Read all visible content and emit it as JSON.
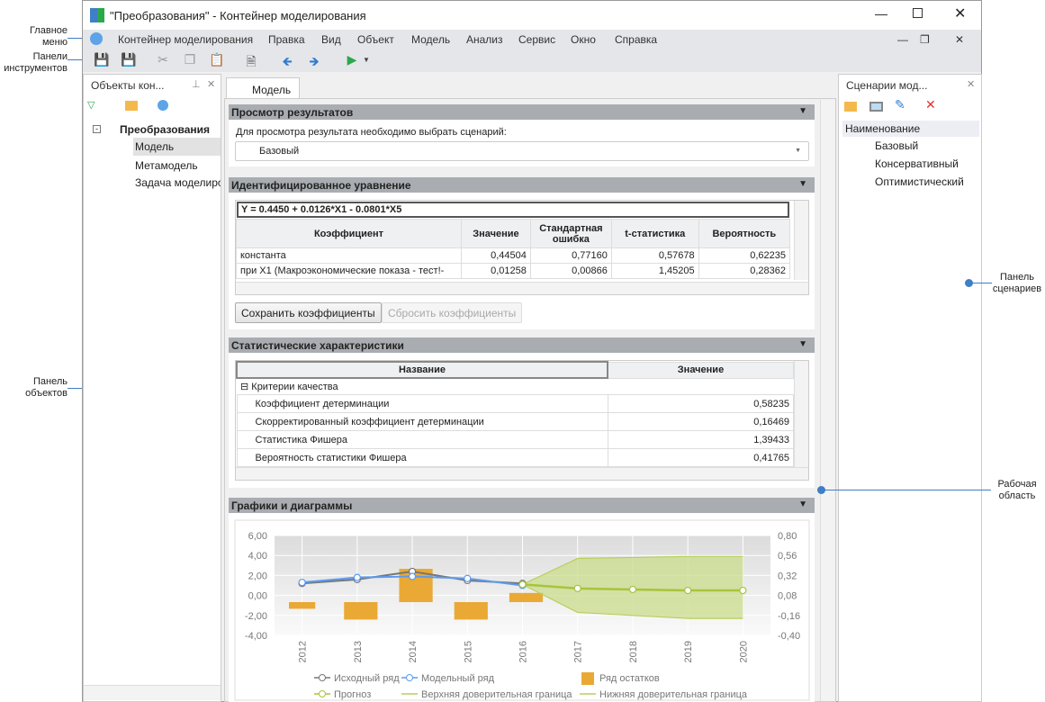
{
  "window": {
    "title": "\"Преобразования\" - Контейнер моделирования"
  },
  "menu": [
    "Контейнер моделирования",
    "Правка",
    "Вид",
    "Объект",
    "Модель",
    "Анализ",
    "Сервис",
    "Окно",
    "Справка"
  ],
  "annotations": {
    "main_menu": "Главное меню",
    "toolbars": "Панели инструментов",
    "objects_panel": "Панель объектов",
    "scenarios_panel": "Панель сценариев",
    "workspace": "Рабочая область"
  },
  "left_panel": {
    "title": "Объекты кон...",
    "tree": {
      "root": "Преобразования",
      "children": [
        "Модель",
        "Метамодель",
        "Задача моделиро"
      ]
    },
    "selected": "Модель"
  },
  "tab": {
    "label": "Модель"
  },
  "results": {
    "title": "Просмотр результатов",
    "prompt": "Для просмотра результата необходимо выбрать сценарий:",
    "scenario": "Базовый"
  },
  "equation": {
    "title": "Идентифицированное уравнение",
    "formula": "Y = 0.4450 + 0.0126*X1 - 0.0801*X5",
    "columns": [
      "Коэффициент",
      "Значение",
      "Стандартная ошибка",
      "t-статистика",
      "Вероятность"
    ],
    "rows": [
      [
        "константа",
        "0,44504",
        "0,77160",
        "0,57678",
        "0,62235"
      ],
      [
        "при X1 (Макроэкономические показа - тест!-",
        "0,01258",
        "0,00866",
        "1,45205",
        "0,28362"
      ]
    ],
    "save_label": "Сохранить коэффициенты",
    "reset_label": "Сбросить коэффициенты"
  },
  "stats": {
    "title": "Статистические характеристики",
    "columns": [
      "Название",
      "Значение"
    ],
    "group": "Критерии качества",
    "rows": [
      [
        "Коэффициент детерминации",
        "0,58235"
      ],
      [
        "Скорректированный коэффициент детерминации",
        "0,16469"
      ],
      [
        "Статистика Фишера",
        "1,39433"
      ],
      [
        "Вероятность статистики Фишера",
        "0,41765"
      ]
    ]
  },
  "charts": {
    "title": "Графики и диаграммы"
  },
  "chart_data": {
    "type": "line",
    "categories": [
      "2012",
      "2013",
      "2014",
      "2015",
      "2016",
      "2017",
      "2018",
      "2019",
      "2020"
    ],
    "ylim": [
      -4,
      6
    ],
    "yticks": [
      "6,00",
      "4,00",
      "2,00",
      "0,00",
      "-2,00",
      "-4,00"
    ],
    "y2lim": [
      -0.4,
      0.8
    ],
    "y2ticks": [
      "0,80",
      "0,56",
      "0,32",
      "0,08",
      "-0,16",
      "-0,40"
    ],
    "series": [
      {
        "name": "Исходный ряд",
        "type": "line",
        "color": "#777777",
        "values": [
          1.2,
          1.6,
          2.4,
          1.5,
          1.2,
          null,
          null,
          null,
          null
        ]
      },
      {
        "name": "Модельный ряд",
        "type": "line",
        "color": "#5b9bf0",
        "values": [
          1.3,
          1.8,
          1.9,
          1.7,
          1.0,
          null,
          null,
          null,
          null
        ]
      },
      {
        "name": "Ряд остатков",
        "type": "bar",
        "axis": "right",
        "color": "#eaa935",
        "values": [
          -0.08,
          -0.21,
          0.4,
          -0.21,
          0.11,
          null,
          null,
          null,
          null
        ]
      },
      {
        "name": "Прогноз",
        "type": "line",
        "color": "#a7c43a",
        "values": [
          null,
          null,
          null,
          null,
          1.1,
          0.7,
          0.6,
          0.5,
          0.5
        ]
      },
      {
        "name": "Верхняя доверительная граница",
        "type": "line",
        "color": "#b7cf5a",
        "values": [
          null,
          null,
          null,
          null,
          1.1,
          3.7,
          3.8,
          3.9,
          3.9
        ]
      },
      {
        "name": "Нижняя доверительная граница",
        "type": "line",
        "color": "#b7cf5a",
        "values": [
          null,
          null,
          null,
          null,
          1.1,
          -1.7,
          -2.0,
          -2.3,
          -2.3
        ]
      }
    ],
    "grid": true,
    "legend": "bottom"
  },
  "right_panel": {
    "title": "Сценарии мод...",
    "column": "Наименование",
    "items": [
      "Базовый",
      "Консервативный",
      "Оптимистический"
    ]
  }
}
